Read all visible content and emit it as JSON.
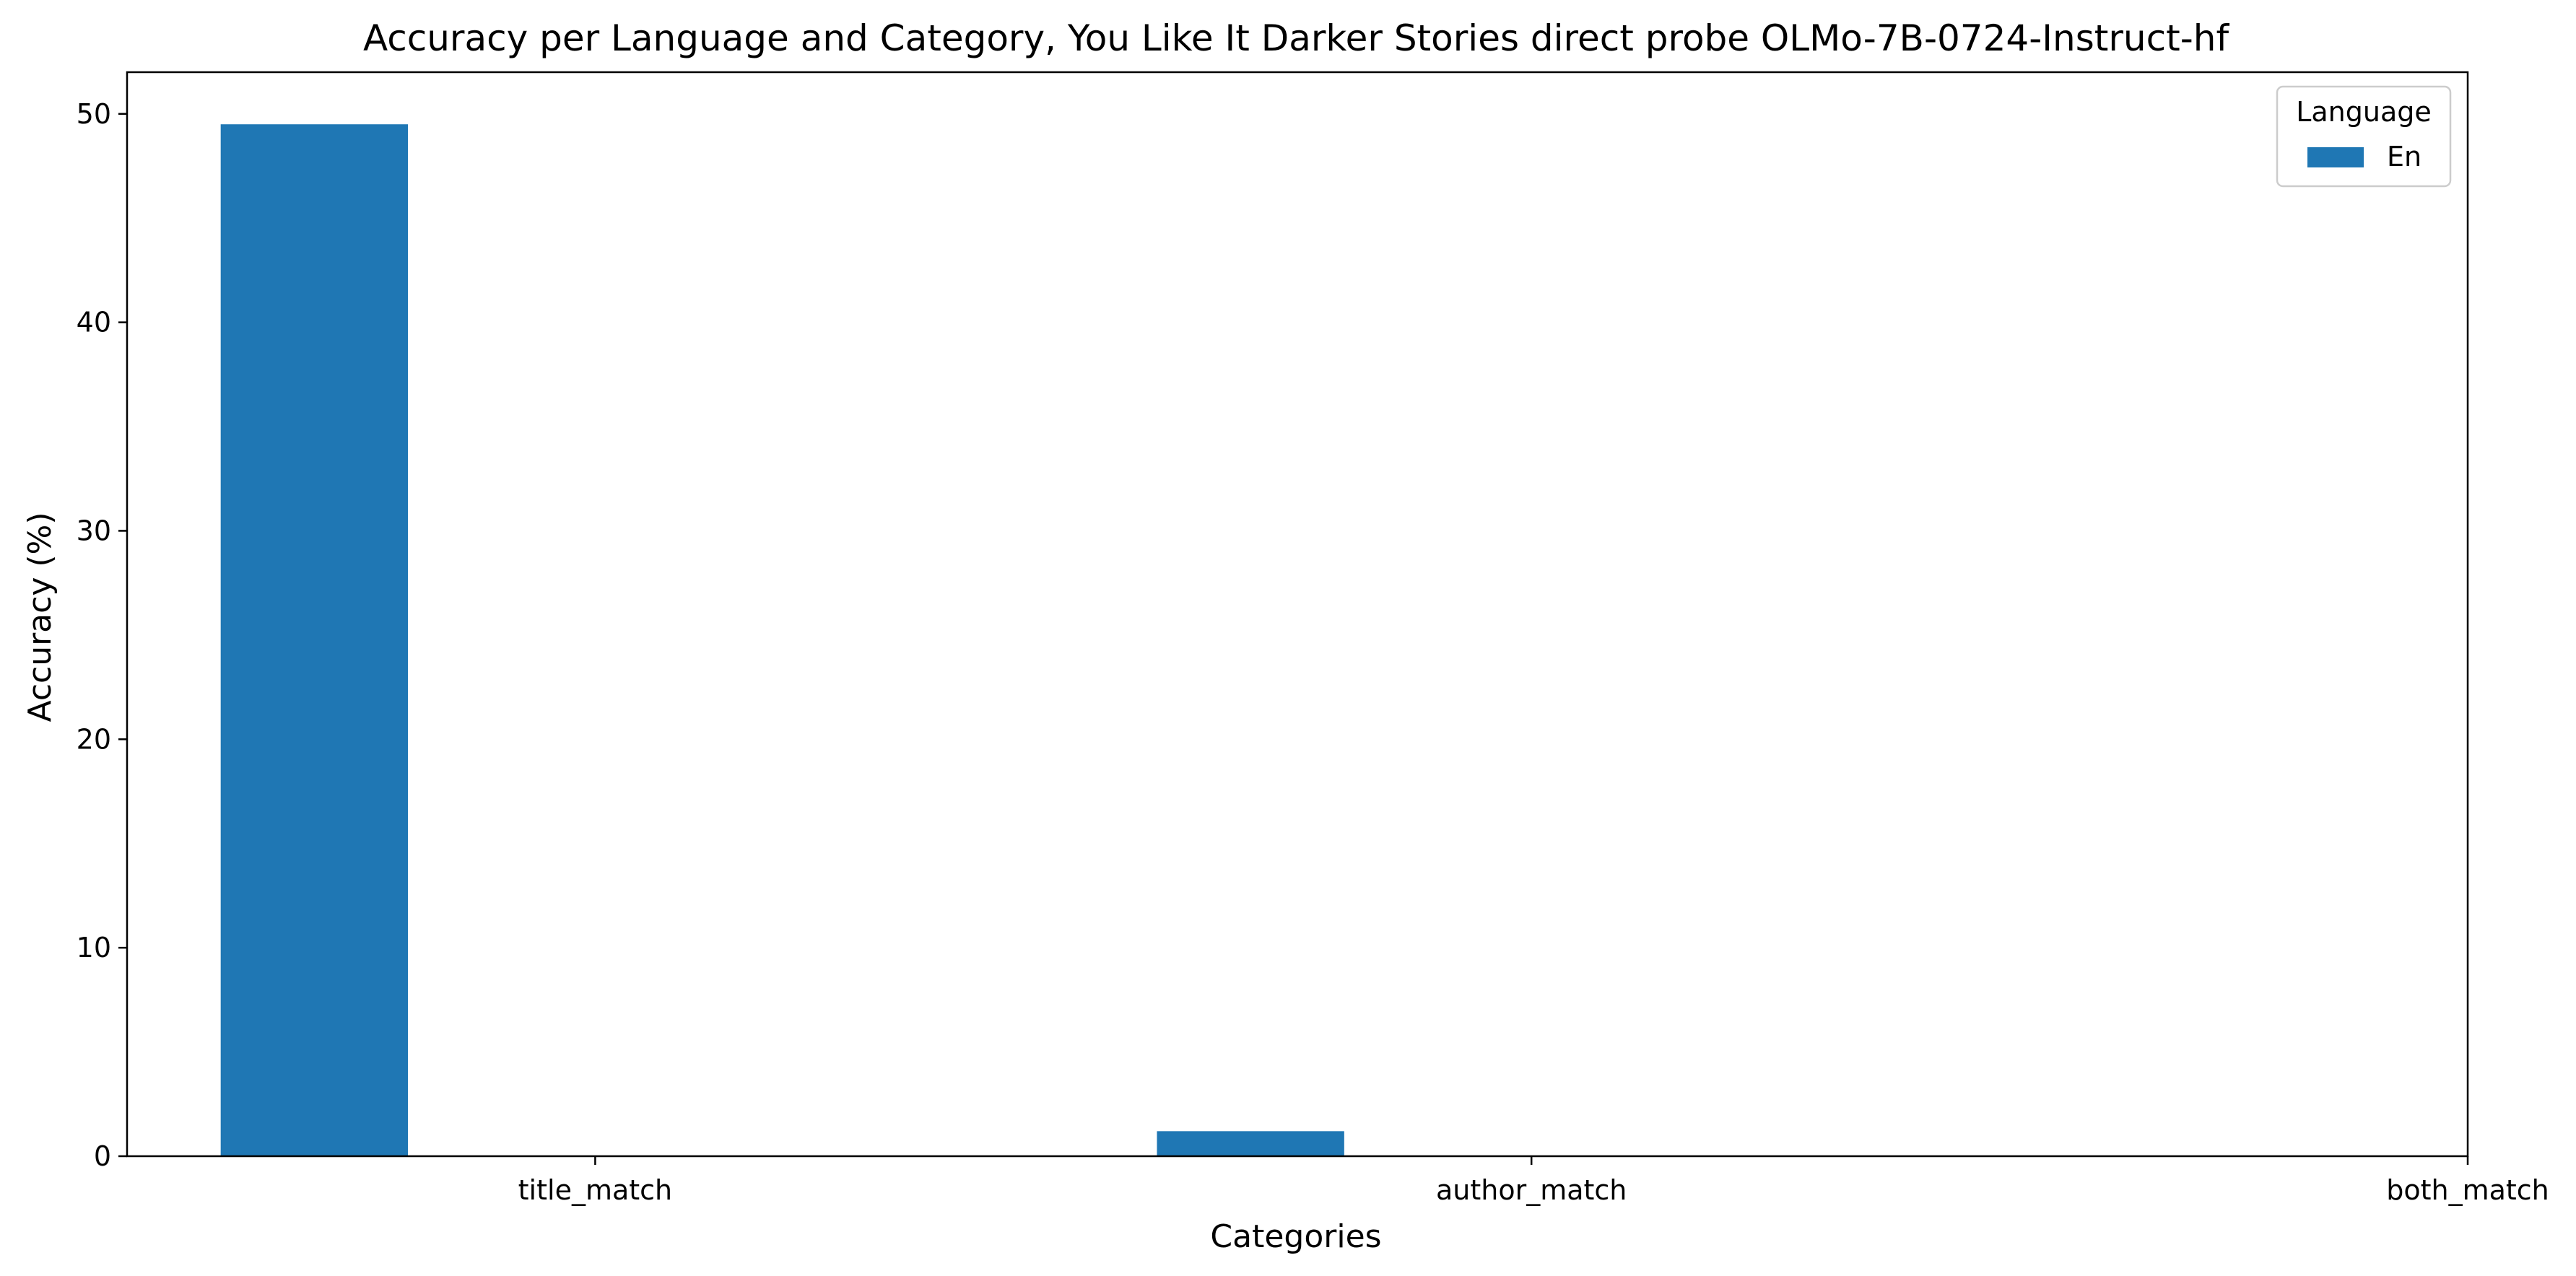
{
  "chart_data": {
    "type": "bar",
    "title": "Accuracy per Language and Category, You Like It Darker Stories direct probe OLMo-7B-0724-Instruct-hf",
    "xlabel": "Categories",
    "ylabel": "Accuracy (%)",
    "categories": [
      "title_match",
      "author_match",
      "both_match"
    ],
    "series": [
      {
        "name": "En",
        "color": "#1f77b4",
        "values": [
          49.5,
          1.2,
          0
        ]
      }
    ],
    "ylim": [
      0,
      52
    ],
    "yticks": [
      0,
      10,
      20,
      30,
      40,
      50
    ],
    "ytick_labels": [
      "0",
      "10",
      "20",
      "30",
      "40",
      "50"
    ],
    "grid": false,
    "legend": {
      "title": "Language",
      "placement": "top-right"
    }
  }
}
